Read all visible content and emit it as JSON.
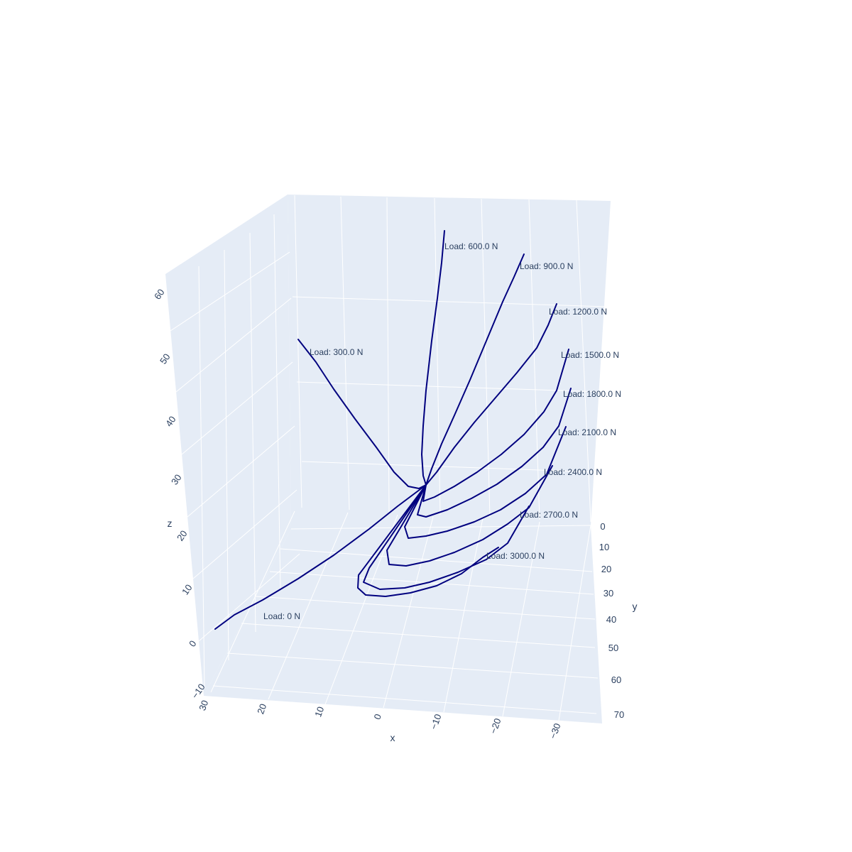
{
  "chart_data": {
    "type": "line3d",
    "title": "",
    "xlabel": "x",
    "ylabel": "y",
    "zlabel": "z",
    "x_ticks": [
      30,
      20,
      10,
      0,
      -10,
      -20,
      -30
    ],
    "y_ticks": [
      0,
      10,
      20,
      30,
      40,
      50,
      60,
      70
    ],
    "z_ticks": [
      -10,
      0,
      10,
      20,
      30,
      40,
      50,
      60
    ],
    "x_tick_labels": [
      "30",
      "20",
      "10",
      "0",
      "−10",
      "−20",
      "−30"
    ],
    "y_tick_labels": [
      "0",
      "10",
      "20",
      "30",
      "40",
      "50",
      "60",
      "70"
    ],
    "z_tick_labels": [
      "−10",
      "0",
      "10",
      "20",
      "30",
      "40",
      "50",
      "60"
    ],
    "xlim": [
      -35,
      31
    ],
    "ylim": [
      0,
      75
    ],
    "zlim": [
      -12,
      62
    ],
    "background": "#e5ecf6",
    "grid": true,
    "line_color": "#00007f",
    "series": [
      {
        "label": "Load: 0 N",
        "points": [
          [
            0,
            0,
            30
          ],
          [
            6,
            6,
            26
          ],
          [
            12,
            12,
            21
          ],
          [
            18,
            18,
            17
          ],
          [
            24,
            24,
            12
          ],
          [
            30,
            30,
            8
          ],
          [
            36,
            36,
            4
          ],
          [
            42,
            42,
            0
          ],
          [
            48,
            48,
            -4
          ],
          [
            54,
            54,
            -8
          ],
          [
            60,
            60,
            -12
          ]
        ]
      },
      {
        "label": "Load: 300.0 N",
        "points": [
          [
            0,
            0,
            30
          ],
          [
            -3,
            8,
            28
          ],
          [
            -4,
            14,
            26
          ],
          [
            -2,
            22,
            23
          ],
          [
            3,
            30,
            20
          ],
          [
            9,
            38,
            18
          ],
          [
            16,
            48,
            15
          ],
          [
            24,
            56,
            13
          ]
        ]
      },
      {
        "label": "Load: 600.0 N",
        "points": [
          [
            0,
            0,
            30
          ],
          [
            -4,
            5,
            29
          ],
          [
            -7,
            12,
            27
          ],
          [
            -9,
            22,
            25
          ],
          [
            -11,
            35,
            23
          ],
          [
            -13,
            50,
            21
          ],
          [
            -14,
            63,
            20
          ]
        ]
      },
      {
        "label": "Load: 900.0 N",
        "points": [
          [
            0,
            0,
            30
          ],
          [
            -8,
            5,
            29
          ],
          [
            -15,
            13,
            28
          ],
          [
            -22,
            23,
            27
          ],
          [
            -28,
            35,
            26
          ],
          [
            -33,
            48,
            26
          ],
          [
            -37,
            60,
            26
          ]
        ]
      },
      {
        "label": "Load: 1200.0 N",
        "points": [
          [
            0,
            0,
            30
          ],
          [
            -10,
            4,
            30
          ],
          [
            -20,
            11,
            29
          ],
          [
            -29,
            20,
            29
          ],
          [
            -36,
            29,
            29
          ],
          [
            -42,
            39,
            30
          ],
          [
            -46,
            50,
            31
          ]
        ]
      },
      {
        "label": "Load: 1500.0 N",
        "points": [
          [
            0,
            0,
            30
          ],
          [
            -2,
            3,
            31
          ],
          [
            -10,
            7,
            32
          ],
          [
            -20,
            12,
            33
          ],
          [
            -29,
            19,
            34
          ],
          [
            -37,
            27,
            36
          ],
          [
            -44,
            35,
            37
          ],
          [
            -49,
            43,
            39
          ]
        ]
      },
      {
        "label": "Load: 1800.0 N",
        "points": [
          [
            0,
            0,
            30
          ],
          [
            2,
            3,
            32
          ],
          [
            -6,
            7,
            34
          ],
          [
            -15,
            12,
            35
          ],
          [
            -25,
            17,
            37
          ],
          [
            -34,
            23,
            39
          ],
          [
            -42,
            30,
            41
          ],
          [
            -49,
            37,
            43
          ]
        ]
      },
      {
        "label": "Load: 2100.0 N",
        "points": [
          [
            0,
            0,
            30
          ],
          [
            3,
            5,
            32
          ],
          [
            2,
            10,
            34
          ],
          [
            -7,
            14,
            36
          ],
          [
            -17,
            18,
            38
          ],
          [
            -27,
            23,
            40
          ],
          [
            -36,
            28,
            43
          ],
          [
            -43,
            34,
            45
          ]
        ]
      },
      {
        "label": "Load: 2400.0 N",
        "points": [
          [
            0,
            0,
            30
          ],
          [
            5,
            6,
            33
          ],
          [
            5,
            12,
            35
          ],
          [
            -3,
            16,
            38
          ],
          [
            -13,
            20,
            40
          ],
          [
            -23,
            24,
            43
          ],
          [
            -31,
            28,
            46
          ],
          [
            -38,
            32,
            48
          ]
        ]
      },
      {
        "label": "Load: 2700.0 N",
        "points": [
          [
            0,
            0,
            30
          ],
          [
            6,
            8,
            33
          ],
          [
            8,
            14,
            36
          ],
          [
            1,
            18,
            39
          ],
          [
            -9,
            22,
            42
          ],
          [
            -19,
            25,
            45
          ],
          [
            -27,
            28,
            48
          ],
          [
            -33,
            31,
            51
          ]
        ]
      },
      {
        "label": "Load: 3000.0 N",
        "points": [
          [
            0,
            0,
            30
          ],
          [
            7,
            9,
            34
          ],
          [
            11,
            16,
            37
          ],
          [
            4,
            20,
            41
          ],
          [
            -6,
            23,
            44
          ],
          [
            -15,
            26,
            47
          ],
          [
            -22,
            28,
            50
          ],
          [
            -28,
            30,
            53
          ]
        ]
      }
    ]
  }
}
